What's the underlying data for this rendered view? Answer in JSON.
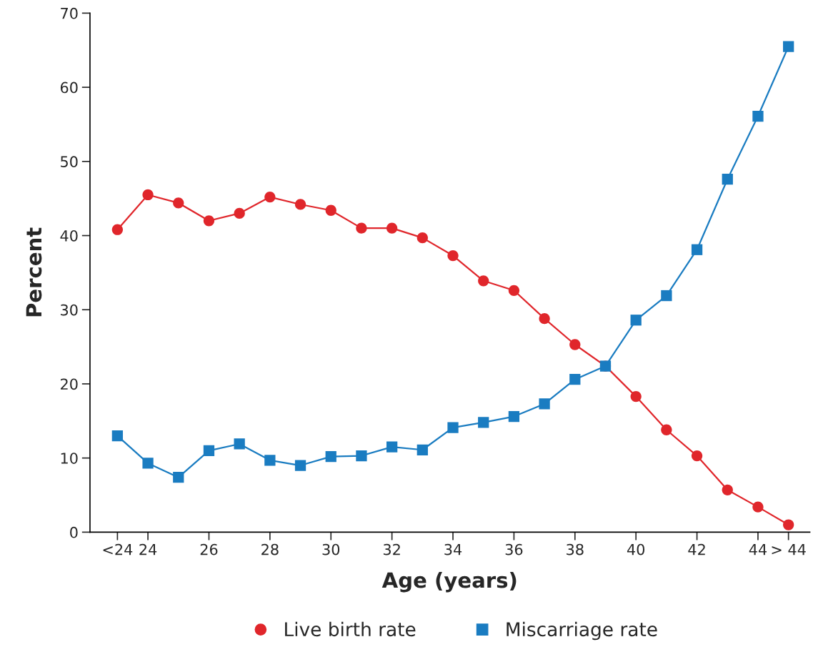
{
  "chart_data": {
    "type": "line",
    "xlabel": "Age (years)",
    "ylabel": "Percent",
    "categories": [
      "<24",
      "24",
      null,
      "26",
      null,
      "28",
      null,
      "30",
      null,
      "32",
      null,
      "34",
      null,
      "36",
      null,
      "38",
      null,
      "40",
      null,
      "42",
      null,
      "44",
      "> 44"
    ],
    "series": [
      {
        "name": "Live birth rate",
        "color": "#e0262b",
        "marker": "circle",
        "values": [
          40.8,
          45.5,
          44.4,
          42.0,
          43.0,
          45.2,
          44.2,
          43.4,
          41.0,
          41.0,
          39.7,
          37.3,
          33.9,
          32.6,
          28.8,
          25.3,
          22.4,
          18.3,
          13.8,
          10.3,
          5.7,
          3.4,
          1.0
        ]
      },
      {
        "name": "Miscarriage rate",
        "color": "#1a7cc1",
        "marker": "square",
        "values": [
          13.0,
          9.3,
          7.4,
          11.0,
          11.9,
          9.7,
          9.0,
          10.2,
          10.3,
          11.5,
          11.1,
          14.1,
          14.8,
          15.6,
          17.3,
          20.6,
          22.4,
          28.6,
          31.9,
          38.1,
          47.6,
          56.1,
          65.5
        ]
      }
    ],
    "ylim": [
      0,
      70
    ],
    "yticks": [
      0,
      10,
      20,
      30,
      40,
      50,
      60,
      70
    ],
    "grid": false,
    "legend": "bottom",
    "line_style": "solid"
  }
}
